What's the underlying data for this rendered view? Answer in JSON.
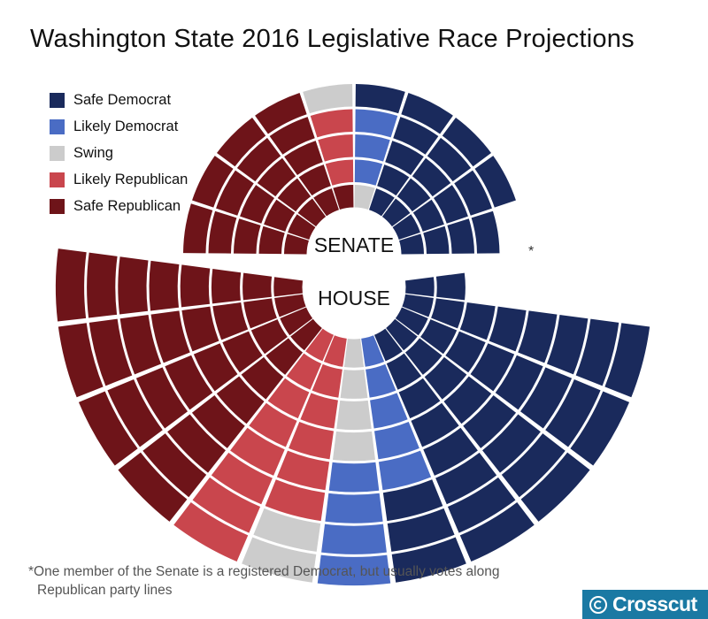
{
  "chart_data": {
    "type": "parliament",
    "title": "Washington State 2016 Legislative Race Projections",
    "legend": {
      "placement": "top-left",
      "entries": [
        {
          "key": "safe_dem",
          "label": "Safe Democrat",
          "color": "#1a2a5c"
        },
        {
          "key": "likely_dem",
          "label": "Likely Democrat",
          "color": "#4a6cc4"
        },
        {
          "key": "swing",
          "label": "Swing",
          "color": "#cccccc"
        },
        {
          "key": "likely_rep",
          "label": "Likely Republican",
          "color": "#c9464d"
        },
        {
          "key": "safe_rep",
          "label": "Safe Republican",
          "color": "#6e1419"
        }
      ]
    },
    "chambers": [
      {
        "name": "SENATE",
        "total_seats": 49,
        "seats": {
          "safe_rep": 21,
          "likely_rep": 3,
          "swing": 2,
          "likely_dem": 3,
          "safe_dem": 20
        },
        "annotation": "*"
      },
      {
        "name": "HOUSE",
        "total_seats": 98,
        "seats": {
          "safe_rep": 32,
          "likely_rep": 14,
          "swing": 6,
          "likely_dem": 9,
          "safe_dem": 37
        }
      }
    ],
    "footnote": {
      "line1": "*One member of the Senate is a registered Democrat, but usually votes along",
      "line2": "Republican party lines"
    }
  },
  "logo": {
    "text": "Crosscut",
    "color": "#1a79a3"
  }
}
